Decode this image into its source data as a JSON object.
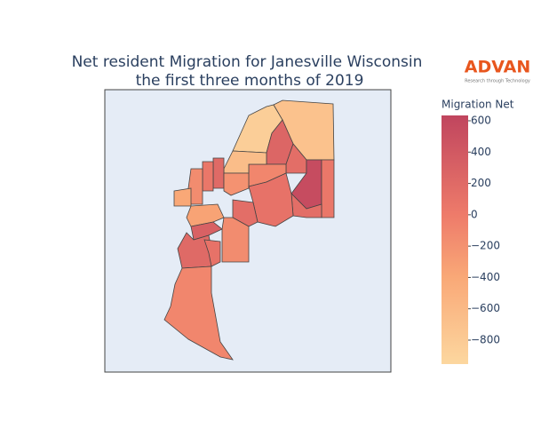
{
  "chart_data": {
    "type": "choropleth",
    "title": "Net resident Migration for Janesville Wisconsin",
    "subtitle": "the first three months of 2019",
    "colorbar_title": "Migration Net",
    "clim": [
      -953,
      634
    ],
    "cticks": [
      600,
      400,
      200,
      0,
      {
        "value": -200,
        "label": "−200"
      },
      {
        "value": -400,
        "label": "−400"
      },
      {
        "value": -600,
        "label": "−600"
      },
      {
        "value": -800,
        "label": "−800"
      }
    ],
    "colorscale": [
      [
        0,
        "#fcd79f"
      ],
      [
        0.35,
        "#f9a877"
      ],
      [
        0.6,
        "#ee7b6a"
      ],
      [
        1,
        "#c0455e"
      ]
    ],
    "values": [
      -850,
      -700,
      250,
      150,
      550,
      50,
      150,
      -100,
      -650,
      200,
      50,
      -150,
      -400,
      -200,
      100,
      -350,
      150,
      -150,
      300,
      200,
      -100,
      100
    ]
  },
  "logo": {
    "name": "ADVAN",
    "tagline": "Research through Technology"
  }
}
